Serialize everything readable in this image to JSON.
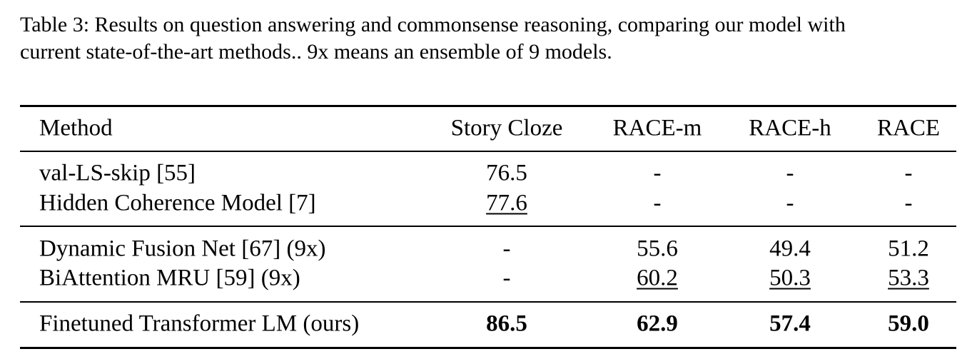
{
  "caption": [
    "Table 3: Results on question answering and commonsense reasoning, comparing our model with",
    "current state-of-the-art methods.. 9x means an ensemble of 9 models."
  ],
  "table": {
    "header": [
      "Method",
      "Story Cloze",
      "RACE-m",
      "RACE-h",
      "RACE"
    ],
    "rows": [
      [
        "val-LS-skip [55]",
        "76.5",
        "-",
        "-",
        "-"
      ],
      [
        "Hidden Coherence Model [7]",
        "77.6",
        "-",
        "-",
        "-"
      ],
      [
        "Dynamic Fusion Net [67] (9x)",
        "-",
        "55.6",
        "49.4",
        "51.2"
      ],
      [
        "BiAttention MRU [59] (9x)",
        "-",
        "60.2",
        "50.3",
        "53.3"
      ],
      [
        "Finetuned Transformer LM (ours)",
        "86.5",
        "62.9",
        "57.4",
        "59.0"
      ]
    ]
  }
}
